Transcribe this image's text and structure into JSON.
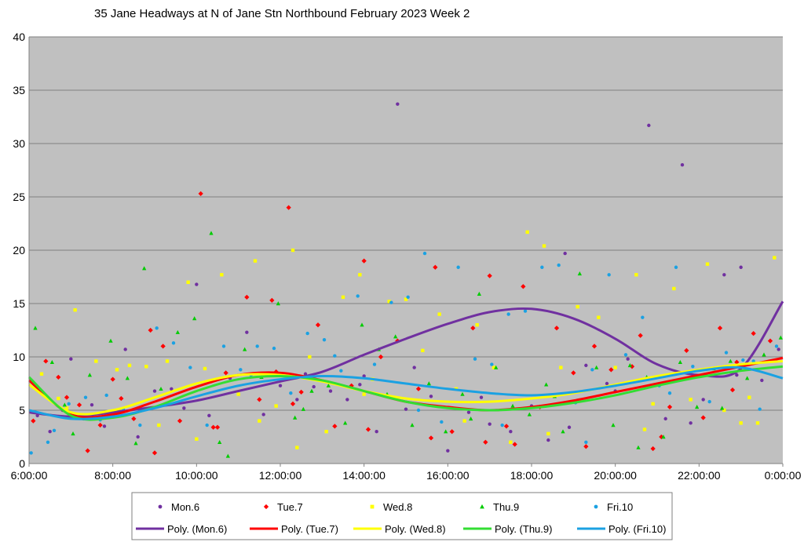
{
  "chart_data": {
    "type": "scatter",
    "title": "35 Jane Headways at N of Jane Stn Northbound February 2023  Week 2",
    "xlabel": "",
    "ylabel": "",
    "x_unit": "time of day (hours)",
    "xlim": [
      6,
      24
    ],
    "ylim": [
      0,
      40
    ],
    "x_ticks": [
      {
        "v": 6,
        "label": "6:00:00"
      },
      {
        "v": 8,
        "label": "8:00:00"
      },
      {
        "v": 10,
        "label": "10:00:00"
      },
      {
        "v": 12,
        "label": "12:00:00"
      },
      {
        "v": 14,
        "label": "14:00:00"
      },
      {
        "v": 16,
        "label": "16:00:00"
      },
      {
        "v": 18,
        "label": "18:00:00"
      },
      {
        "v": 20,
        "label": "20:00:00"
      },
      {
        "v": 22,
        "label": "22:00:00"
      },
      {
        "v": 24,
        "label": "0:00:00"
      }
    ],
    "y_ticks": [
      0,
      5,
      10,
      15,
      20,
      25,
      30,
      35,
      40
    ],
    "grid": "horizontal",
    "background": "#c0c0c0",
    "legend_position": "bottom",
    "series": [
      {
        "name": "Mon.6",
        "marker": "circle",
        "color": "#7030a0",
        "x": [
          6.2,
          6.5,
          7.0,
          7.3,
          7.8,
          8.3,
          8.6,
          9.0,
          9.4,
          10.0,
          10.3,
          10.8,
          11.2,
          11.6,
          12.0,
          12.4,
          12.8,
          13.2,
          13.6,
          14.0,
          14.3,
          14.8,
          15.2,
          15.6,
          16.0,
          16.5,
          17.0,
          17.5,
          18.0,
          18.4,
          18.8,
          19.3,
          19.8,
          20.3,
          20.8,
          21.2,
          21.6,
          22.1,
          22.6,
          23.0,
          23.5,
          23.9,
          6.8,
          7.5,
          8.0,
          9.7,
          11.0,
          12.6,
          13.9,
          15.0,
          16.8,
          18.9,
          20.0,
          21.8,
          22.9
        ],
        "y": [
          4.5,
          3.0,
          9.8,
          4.2,
          3.5,
          10.7,
          2.5,
          6.8,
          7.0,
          16.8,
          4.5,
          8.0,
          12.3,
          4.6,
          7.3,
          6.0,
          7.2,
          6.8,
          6.0,
          8.2,
          3.0,
          33.7,
          9.0,
          6.3,
          1.2,
          4.8,
          3.7,
          3.0,
          5.4,
          2.2,
          19.7,
          9.2,
          7.5,
          9.8,
          31.7,
          4.2,
          28.0,
          6.0,
          17.7,
          18.4,
          7.8,
          10.7,
          5.0,
          5.5,
          4.4,
          5.2,
          6.5,
          8.4,
          7.4,
          5.1,
          6.2,
          3.4,
          6.8,
          3.8,
          8.3
        ]
      },
      {
        "name": "Tue.7",
        "marker": "diamond",
        "color": "#ff0000",
        "x": [
          6.1,
          6.4,
          6.9,
          7.2,
          7.7,
          8.0,
          8.5,
          8.9,
          9.2,
          9.6,
          10.1,
          10.4,
          10.7,
          11.2,
          11.5,
          11.9,
          12.2,
          12.5,
          12.9,
          13.3,
          13.7,
          14.0,
          14.4,
          14.8,
          15.3,
          15.7,
          16.1,
          16.6,
          17.0,
          17.4,
          17.8,
          18.2,
          18.6,
          19.0,
          19.5,
          19.9,
          20.4,
          20.9,
          21.3,
          21.7,
          22.1,
          22.5,
          22.9,
          23.3,
          23.7,
          6.7,
          7.4,
          8.2,
          9.0,
          10.5,
          11.8,
          12.3,
          14.1,
          15.6,
          16.9,
          17.6,
          19.3,
          20.6,
          21.1,
          22.8
        ],
        "y": [
          4.0,
          9.6,
          6.2,
          5.5,
          3.6,
          7.9,
          4.2,
          12.5,
          11.0,
          4.0,
          25.3,
          3.4,
          8.5,
          15.6,
          6.0,
          8.6,
          24.0,
          6.7,
          13.0,
          3.5,
          7.3,
          19.0,
          10.0,
          11.5,
          7.0,
          18.4,
          3.0,
          12.7,
          17.6,
          3.5,
          16.6,
          5.3,
          12.7,
          8.5,
          11.0,
          8.8,
          9.1,
          1.4,
          5.3,
          10.6,
          4.3,
          12.7,
          9.5,
          12.2,
          11.5,
          8.1,
          1.2,
          6.1,
          1.0,
          3.4,
          15.3,
          5.6,
          3.2,
          2.4,
          2.0,
          1.8,
          1.6,
          12.0,
          2.5,
          6.9
        ]
      },
      {
        "name": "Wed.8",
        "marker": "square",
        "color": "#ffff00",
        "x": [
          6.3,
          6.7,
          7.1,
          7.6,
          8.1,
          8.4,
          8.8,
          9.3,
          9.8,
          10.2,
          10.6,
          11.0,
          11.4,
          11.9,
          12.3,
          12.7,
          13.1,
          13.5,
          13.9,
          14.2,
          14.6,
          15.0,
          15.4,
          15.8,
          16.2,
          16.7,
          17.1,
          17.5,
          17.9,
          18.3,
          18.7,
          19.1,
          19.6,
          20.0,
          20.5,
          20.9,
          21.4,
          21.8,
          22.2,
          22.6,
          23.0,
          23.4,
          23.8,
          6.9,
          7.9,
          9.1,
          10.0,
          11.5,
          12.4,
          14.0,
          16.4,
          18.4,
          20.7,
          23.2
        ],
        "y": [
          8.4,
          6.1,
          14.4,
          9.6,
          8.8,
          9.2,
          9.1,
          9.6,
          17.0,
          8.9,
          17.7,
          6.5,
          19.0,
          5.4,
          20.0,
          10.0,
          3.0,
          15.6,
          17.7,
          7.9,
          15.2,
          15.4,
          10.6,
          14.0,
          7.0,
          13.0,
          9.0,
          2.0,
          21.7,
          20.4,
          9.0,
          14.7,
          13.7,
          9.0,
          17.7,
          5.6,
          16.4,
          6.0,
          18.7,
          5.0,
          3.8,
          3.8,
          19.3,
          5.2,
          4.6,
          3.6,
          2.3,
          4.0,
          1.5,
          6.5,
          4.0,
          2.8,
          3.2,
          6.2
        ]
      },
      {
        "name": "Thu.9",
        "marker": "triangle",
        "color": "#00cc00",
        "x": [
          6.15,
          6.55,
          7.05,
          7.45,
          7.95,
          8.35,
          8.75,
          9.15,
          9.55,
          9.95,
          10.35,
          10.75,
          11.15,
          11.55,
          11.95,
          12.35,
          12.75,
          13.15,
          13.55,
          13.95,
          14.35,
          14.75,
          15.15,
          15.55,
          15.95,
          16.35,
          16.75,
          17.15,
          17.55,
          17.95,
          18.35,
          18.75,
          19.15,
          19.55,
          19.95,
          20.35,
          20.75,
          21.15,
          21.55,
          21.95,
          22.35,
          22.75,
          23.15,
          23.55,
          23.95,
          6.85,
          8.55,
          10.55,
          12.55,
          14.55,
          16.55,
          18.55,
          20.55,
          22.55
        ],
        "y": [
          12.7,
          9.5,
          2.8,
          8.3,
          11.5,
          8.0,
          18.3,
          7.0,
          12.3,
          13.6,
          21.6,
          0.7,
          10.7,
          8.1,
          15.0,
          4.3,
          6.8,
          7.3,
          3.8,
          13.0,
          10.7,
          11.9,
          3.6,
          7.5,
          3.0,
          6.5,
          15.9,
          9.0,
          5.4,
          4.6,
          7.4,
          3.0,
          17.8,
          9.0,
          3.6,
          9.2,
          8.1,
          2.5,
          9.5,
          5.3,
          8.9,
          9.6,
          8.0,
          10.2,
          11.8,
          5.5,
          1.9,
          2.0,
          5.1,
          6.5,
          4.2,
          6.3,
          1.5,
          5.2
        ]
      },
      {
        "name": "Fri.10",
        "marker": "circle",
        "color": "#1ba1e2",
        "x": [
          6.05,
          6.45,
          6.95,
          7.35,
          7.85,
          8.25,
          8.65,
          9.05,
          9.45,
          9.85,
          10.25,
          10.65,
          11.05,
          11.45,
          11.85,
          12.25,
          12.65,
          13.05,
          13.45,
          13.85,
          14.25,
          14.65,
          15.05,
          15.45,
          15.85,
          16.25,
          16.65,
          17.05,
          17.45,
          17.85,
          18.25,
          18.65,
          19.05,
          19.45,
          19.85,
          20.25,
          20.65,
          21.05,
          21.45,
          21.85,
          22.25,
          22.65,
          23.05,
          23.45,
          23.85,
          6.6,
          7.7,
          9.3,
          11.3,
          13.3,
          15.3,
          17.3,
          19.3,
          21.3,
          23.3
        ],
        "y": [
          1.0,
          2.0,
          5.6,
          6.2,
          6.4,
          5.1,
          3.6,
          12.7,
          11.3,
          9.0,
          3.6,
          11.0,
          8.8,
          11.0,
          10.8,
          6.6,
          12.2,
          11.6,
          8.7,
          15.7,
          9.3,
          15.1,
          15.6,
          19.7,
          3.9,
          18.4,
          9.8,
          9.3,
          14.0,
          14.3,
          18.4,
          18.6,
          5.7,
          8.8,
          17.7,
          10.2,
          13.7,
          7.3,
          18.4,
          9.1,
          5.8,
          10.4,
          9.7,
          5.1,
          11.0,
          3.1,
          4.1,
          5.6,
          8.3,
          10.1,
          5.0,
          3.6,
          2.0,
          6.6,
          9.6
        ]
      }
    ],
    "trendlines": [
      {
        "name": "Poly. (Mon.6)",
        "color": "#7030a0",
        "x": [
          6,
          7,
          8,
          9,
          10,
          11,
          12,
          13,
          14,
          15,
          16,
          17,
          18,
          19,
          20,
          21,
          22,
          23,
          24
        ],
        "y": [
          4.8,
          4.4,
          4.8,
          5.3,
          5.9,
          6.8,
          7.7,
          8.6,
          10.2,
          11.7,
          13.1,
          14.2,
          14.5,
          13.6,
          11.7,
          9.3,
          8.3,
          8.9,
          15.2
        ]
      },
      {
        "name": "Poly. (Tue.7)",
        "color": "#ff0000",
        "x": [
          6,
          7,
          8,
          9,
          10,
          11,
          12,
          13,
          14,
          15,
          16,
          17,
          18,
          19,
          20,
          21,
          22,
          23,
          24
        ],
        "y": [
          7.8,
          4.6,
          4.6,
          5.8,
          7.2,
          8.3,
          8.5,
          7.8,
          6.8,
          5.8,
          5.3,
          5.0,
          5.3,
          5.9,
          6.7,
          7.5,
          8.3,
          9.1,
          9.9
        ]
      },
      {
        "name": "Poly. (Wed.8)",
        "color": "#ffff00",
        "x": [
          6,
          7,
          8,
          9,
          10,
          11,
          12,
          13,
          14,
          15,
          16,
          17,
          18,
          19,
          20,
          21,
          22,
          23,
          24
        ],
        "y": [
          7.4,
          4.8,
          5.0,
          6.2,
          7.5,
          8.3,
          8.3,
          7.7,
          6.8,
          6.1,
          5.8,
          5.8,
          6.1,
          6.6,
          7.4,
          8.2,
          8.8,
          9.3,
          9.6
        ]
      },
      {
        "name": "Poly. (Thu.9)",
        "color": "#33dd33",
        "x": [
          6,
          7,
          8,
          9,
          10,
          11,
          12,
          13,
          14,
          15,
          16,
          17,
          18,
          19,
          20,
          21,
          22,
          23,
          24
        ],
        "y": [
          8.1,
          4.5,
          4.3,
          5.3,
          6.8,
          7.9,
          8.2,
          7.8,
          6.8,
          5.8,
          5.2,
          5.0,
          5.2,
          5.7,
          6.4,
          7.3,
          8.1,
          8.7,
          9.1
        ]
      },
      {
        "name": "Poly. (Fri.10)",
        "color": "#1ba1e2",
        "x": [
          6,
          7,
          8,
          9,
          10,
          11,
          12,
          13,
          14,
          15,
          16,
          17,
          18,
          19,
          20,
          21,
          22,
          23,
          24
        ],
        "y": [
          5.0,
          4.2,
          4.4,
          5.2,
          6.3,
          7.3,
          7.9,
          8.2,
          8.0,
          7.5,
          7.0,
          6.6,
          6.4,
          6.7,
          7.3,
          8.0,
          8.7,
          9.0,
          8.0
        ]
      }
    ]
  }
}
